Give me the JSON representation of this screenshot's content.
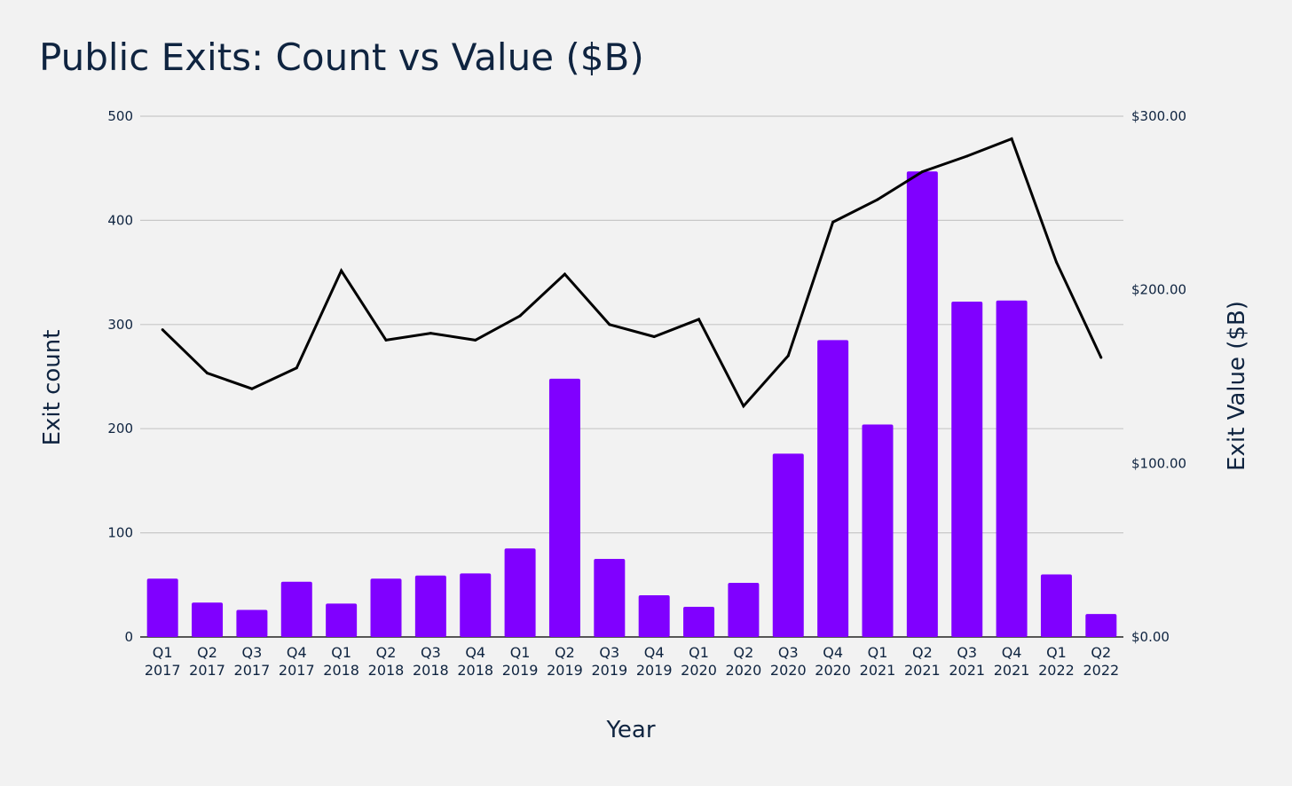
{
  "chart_data": {
    "type": "bar+line",
    "title": "Public Exits: Count vs Value ($B)",
    "xlabel": "Year",
    "ylabel": "Exit count",
    "y2label": "Exit Value ($B)",
    "ylim": [
      0,
      500
    ],
    "y2lim": [
      0,
      300
    ],
    "yticks": [
      0,
      100,
      200,
      300,
      400,
      500
    ],
    "y2ticks": [
      {
        "value": 0,
        "label": "$0.00"
      },
      {
        "value": 100,
        "label": "$100.00"
      },
      {
        "value": 200,
        "label": "$200.00"
      },
      {
        "value": 300,
        "label": "$300.00"
      }
    ],
    "grid": true,
    "categories": [
      {
        "q": "Q1",
        "year": "2017"
      },
      {
        "q": "Q2",
        "year": "2017"
      },
      {
        "q": "Q3",
        "year": "2017"
      },
      {
        "q": "Q4",
        "year": "2017"
      },
      {
        "q": "Q1",
        "year": "2018"
      },
      {
        "q": "Q2",
        "year": "2018"
      },
      {
        "q": "Q3",
        "year": "2018"
      },
      {
        "q": "Q4",
        "year": "2018"
      },
      {
        "q": "Q1",
        "year": "2019"
      },
      {
        "q": "Q2",
        "year": "2019"
      },
      {
        "q": "Q3",
        "year": "2019"
      },
      {
        "q": "Q4",
        "year": "2019"
      },
      {
        "q": "Q1",
        "year": "2020"
      },
      {
        "q": "Q2",
        "year": "2020"
      },
      {
        "q": "Q3",
        "year": "2020"
      },
      {
        "q": "Q4",
        "year": "2020"
      },
      {
        "q": "Q1",
        "year": "2021"
      },
      {
        "q": "Q2",
        "year": "2021"
      },
      {
        "q": "Q3",
        "year": "2021"
      },
      {
        "q": "Q4",
        "year": "2021"
      },
      {
        "q": "Q1",
        "year": "2022"
      },
      {
        "q": "Q2",
        "year": "2022"
      }
    ],
    "series": [
      {
        "name": "Exit count",
        "type": "bar",
        "axis": "left",
        "color": "#8000ff",
        "values": [
          56,
          33,
          26,
          53,
          32,
          56,
          59,
          61,
          85,
          248,
          75,
          40,
          29,
          52,
          176,
          285,
          204,
          447,
          322,
          323,
          60,
          22
        ]
      },
      {
        "name": "Exit Value ($B)",
        "type": "line",
        "axis": "right",
        "color": "#000000",
        "values": [
          177,
          152,
          143,
          155,
          211,
          171,
          175,
          171,
          185,
          209,
          180,
          173,
          183,
          133,
          162,
          239,
          252,
          268,
          277,
          287,
          216,
          161
        ]
      }
    ]
  }
}
